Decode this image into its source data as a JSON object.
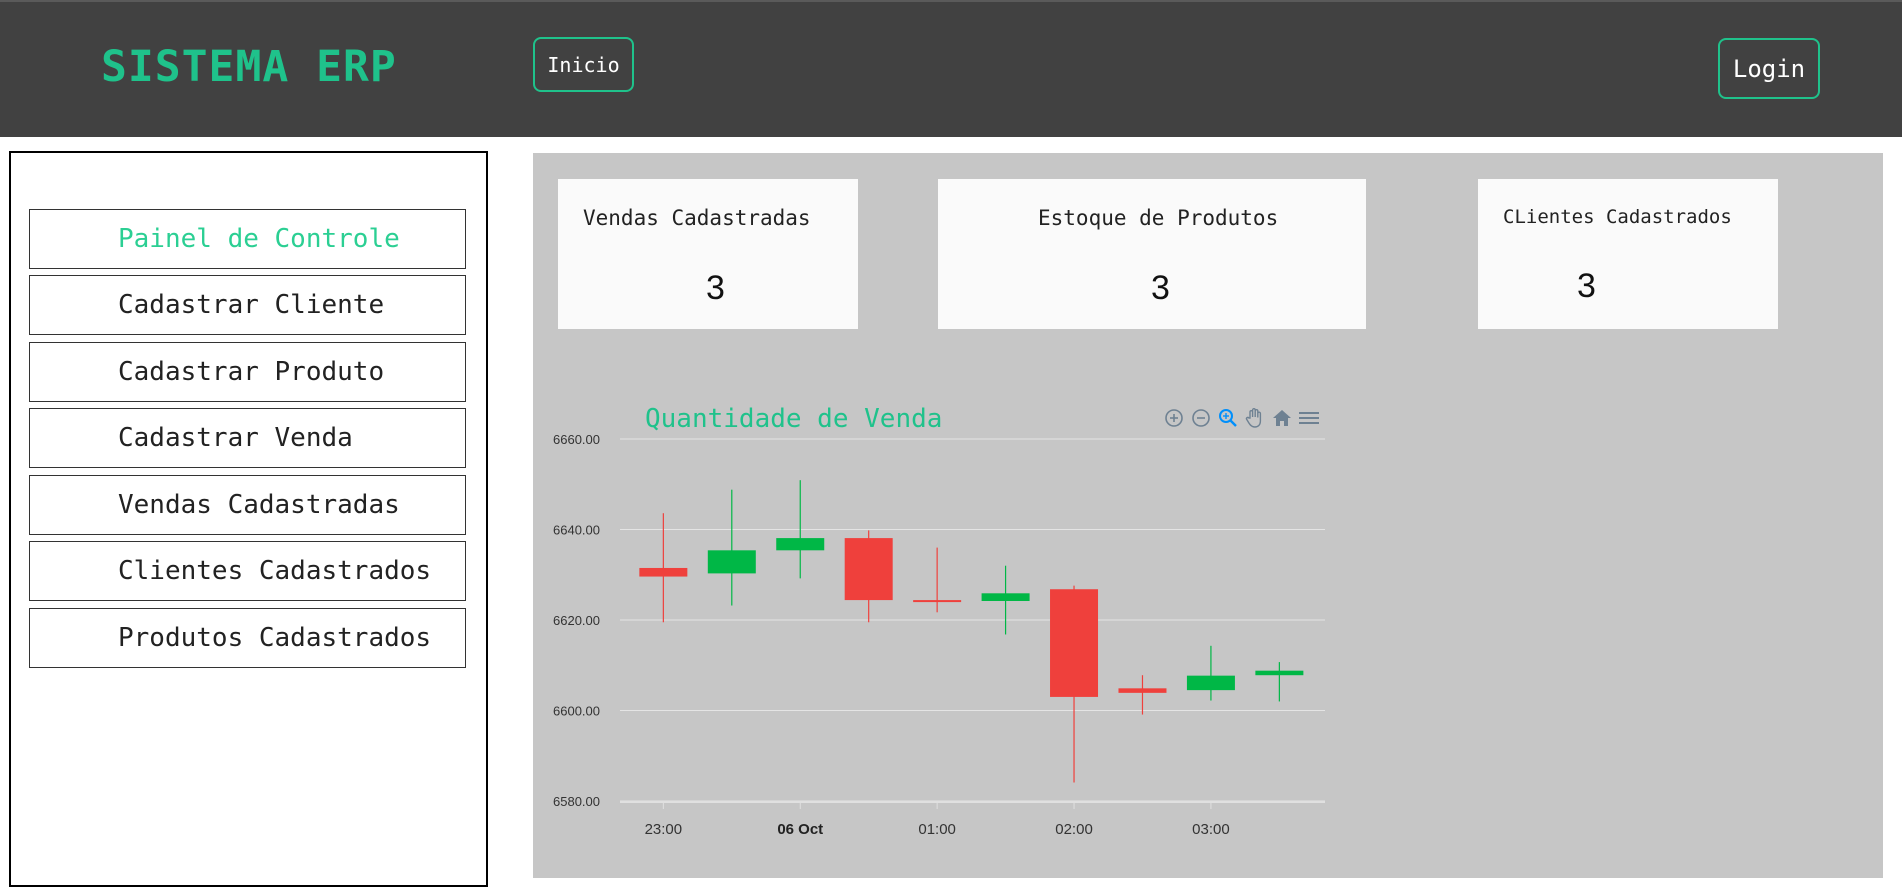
{
  "header": {
    "brand": "SISTEMA ERP",
    "inicio_label": "Inicio",
    "login_label": "Login"
  },
  "sidebar": {
    "items": [
      {
        "label": "Painel de Controle",
        "active": true
      },
      {
        "label": "Cadastrar Cliente",
        "active": false
      },
      {
        "label": "Cadastrar Produto",
        "active": false
      },
      {
        "label": "Cadastrar Venda",
        "active": false
      },
      {
        "label": "Vendas Cadastradas",
        "active": false
      },
      {
        "label": "Clientes Cadastrados",
        "active": false
      },
      {
        "label": "Produtos Cadastrados",
        "active": false
      }
    ]
  },
  "cards": [
    {
      "title": "Vendas Cadastradas",
      "value": "3"
    },
    {
      "title": "Estoque de Produtos",
      "value": "3"
    },
    {
      "title": "CLientes Cadastrados",
      "value": "3"
    }
  ],
  "chart_toolbar": [
    "zoom-in-icon",
    "zoom-out-icon",
    "magnifier-icon",
    "pan-hand-icon",
    "home-icon",
    "menu-icon"
  ],
  "colors": {
    "accent": "#1fc28b",
    "header_bg": "#414141",
    "panel_bg": "#c6c6c6",
    "up_candle": "#00b746",
    "down_candle": "#ef403c"
  },
  "chart_data": {
    "type": "candlestick",
    "title": "Quantidade de Venda",
    "ylim": [
      6580,
      6660
    ],
    "y_ticks": [
      "6660.00",
      "6640.00",
      "6620.00",
      "6600.00",
      "6580.00"
    ],
    "x_ticks": [
      {
        "label": "23:00",
        "t": 0,
        "bold": false
      },
      {
        "label": "06 Oct",
        "t": 60,
        "bold": true
      },
      {
        "label": "01:00",
        "t": 120,
        "bold": false
      },
      {
        "label": "02:00",
        "t": 180,
        "bold": false
      },
      {
        "label": "03:00",
        "t": 240,
        "bold": false
      }
    ],
    "x_range": [
      -19,
      290
    ],
    "grid": true,
    "candles": [
      {
        "t": 0,
        "open": 6631.5,
        "high": 6643.6,
        "low": 6619.5,
        "close": 6629.6
      },
      {
        "t": 30,
        "open": 6630.3,
        "high": 6648.8,
        "low": 6623.2,
        "close": 6635.4
      },
      {
        "t": 60,
        "open": 6635.4,
        "high": 6650.9,
        "low": 6629.2,
        "close": 6638.1
      },
      {
        "t": 90,
        "open": 6638.1,
        "high": 6639.8,
        "low": 6619.5,
        "close": 6624.4
      },
      {
        "t": 120,
        "open": 6624.4,
        "high": 6636.0,
        "low": 6621.7,
        "close": 6624.0
      },
      {
        "t": 150,
        "open": 6624.2,
        "high": 6632.0,
        "low": 6616.8,
        "close": 6625.9
      },
      {
        "t": 180,
        "open": 6626.8,
        "high": 6627.6,
        "low": 6584.1,
        "close": 6603.0
      },
      {
        "t": 210,
        "open": 6604.9,
        "high": 6607.8,
        "low": 6599.1,
        "close": 6603.9
      },
      {
        "t": 240,
        "open": 6604.5,
        "high": 6614.3,
        "low": 6602.2,
        "close": 6607.7
      },
      {
        "t": 270,
        "open": 6607.8,
        "high": 6610.7,
        "low": 6602.0,
        "close": 6608.8
      }
    ]
  }
}
